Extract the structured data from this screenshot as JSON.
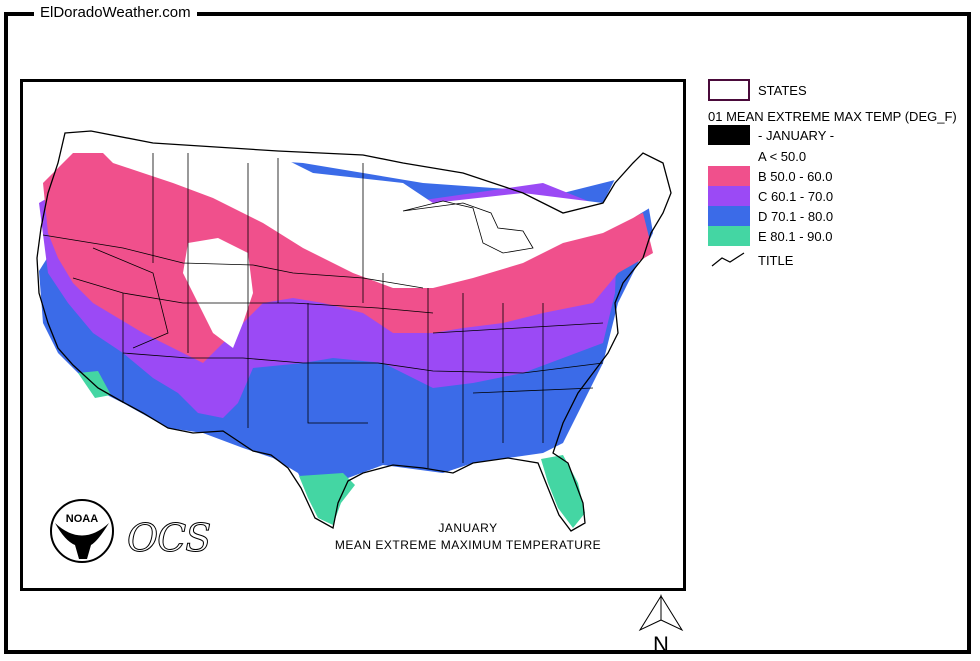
{
  "site_title": "ElDoradoWeather.com",
  "legend": {
    "states_label": "STATES",
    "layer_title": "01 MEAN EXTREME MAX TEMP (DEG_F)",
    "month_label": "- JANUARY -",
    "classes": [
      {
        "label": "A < 50.0",
        "color": "#ffffff"
      },
      {
        "label": "B 50.0 - 60.0",
        "color": "#f0508c"
      },
      {
        "label": "C 60.1 - 70.0",
        "color": "#9b4af5"
      },
      {
        "label": "D 70.1 - 80.0",
        "color": "#3b6be8"
      },
      {
        "label": "E 80.1 - 90.0",
        "color": "#44d6a3"
      }
    ],
    "title_label": "TITLE"
  },
  "map": {
    "caption_line1": "JANUARY",
    "caption_line2": "MEAN EXTREME MAXIMUM TEMPERATURE",
    "logo_text": "NOAA",
    "agency_text": "OCS",
    "north_label": "N"
  }
}
